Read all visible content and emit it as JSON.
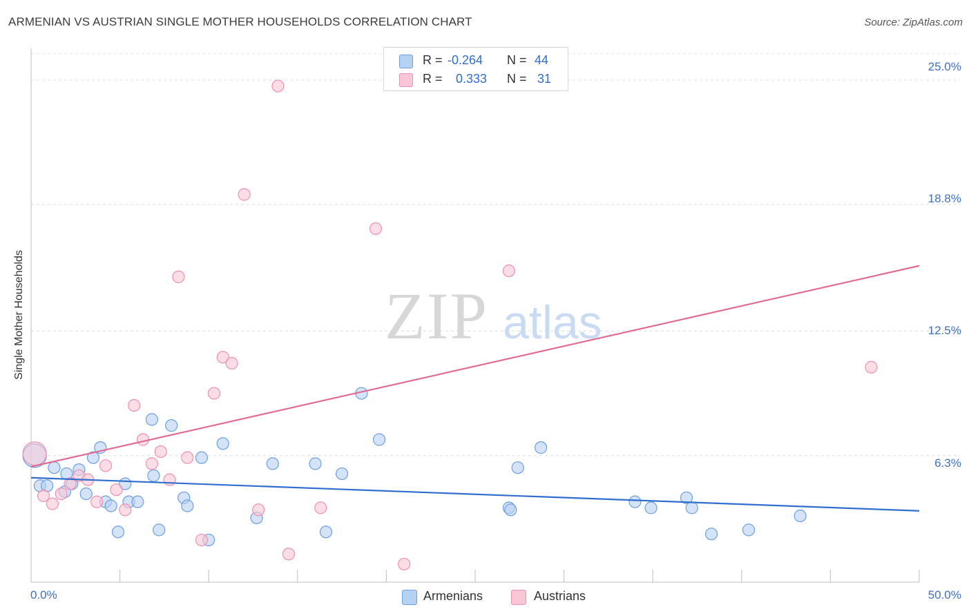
{
  "header": {
    "title": "ARMENIAN VS AUSTRIAN SINGLE MOTHER HOUSEHOLDS CORRELATION CHART",
    "source": "Source: ZipAtlas.com"
  },
  "watermark": {
    "zip": "ZIP",
    "atlas": "atlas"
  },
  "legend": {
    "rows": [
      {
        "r_label": "R =",
        "r_value": "-0.264",
        "n_label": "N =",
        "n_value": "44",
        "color": "#8fb8ec"
      },
      {
        "r_label": "R =",
        "r_value": "0.333",
        "n_label": "N =",
        "n_value": "31",
        "color": "#f4a6bf"
      }
    ]
  },
  "bottom_legend": [
    {
      "label": "Armenians",
      "color": "#8fb8ec"
    },
    {
      "label": "Austrians",
      "color": "#f4a6bf"
    }
  ],
  "chart_data": {
    "type": "scatter",
    "title": "ARMENIAN VS AUSTRIAN SINGLE MOTHER HOUSEHOLDS CORRELATION CHART",
    "xlabel": "",
    "ylabel": "Single Mother Households",
    "xlim": [
      0,
      50
    ],
    "ylim": [
      0,
      26.3
    ],
    "x_tick_labels": [
      "0.0%",
      "50.0%"
    ],
    "y_ticks": [
      6.3,
      12.5,
      18.8,
      25.0
    ],
    "y_tick_labels": [
      "6.3%",
      "12.5%",
      "18.8%",
      "25.0%"
    ],
    "grid": true,
    "series": [
      {
        "name": "Armenians",
        "color": "#6a9fe0",
        "fill": "#b7d1f3",
        "trend": {
          "x": [
            0,
            50
          ],
          "y": [
            5.2,
            3.55
          ],
          "color": "#2f6ecf"
        },
        "points": [
          [
            0.2,
            6.3
          ],
          [
            0.5,
            4.8
          ],
          [
            0.9,
            4.8
          ],
          [
            1.3,
            5.7
          ],
          [
            1.9,
            4.5
          ],
          [
            2.0,
            5.4
          ],
          [
            2.3,
            4.9
          ],
          [
            2.7,
            5.6
          ],
          [
            3.1,
            4.4
          ],
          [
            3.5,
            6.2
          ],
          [
            3.9,
            6.7
          ],
          [
            4.2,
            4.0
          ],
          [
            4.5,
            3.8
          ],
          [
            4.9,
            2.5
          ],
          [
            5.3,
            4.9
          ],
          [
            5.5,
            4.0
          ],
          [
            6.0,
            4.0
          ],
          [
            6.8,
            8.1
          ],
          [
            6.9,
            5.3
          ],
          [
            7.2,
            2.6
          ],
          [
            7.9,
            7.8
          ],
          [
            8.6,
            4.2
          ],
          [
            8.8,
            3.8
          ],
          [
            9.6,
            6.2
          ],
          [
            10.0,
            2.1
          ],
          [
            10.8,
            6.9
          ],
          [
            12.7,
            3.2
          ],
          [
            13.6,
            5.9
          ],
          [
            16.0,
            5.9
          ],
          [
            16.6,
            2.5
          ],
          [
            17.5,
            5.4
          ],
          [
            18.6,
            9.4
          ],
          [
            19.6,
            7.1
          ],
          [
            26.9,
            3.7
          ],
          [
            27.0,
            3.6
          ],
          [
            27.4,
            5.7
          ],
          [
            28.7,
            6.7
          ],
          [
            34.0,
            4.0
          ],
          [
            34.9,
            3.7
          ],
          [
            36.9,
            4.2
          ],
          [
            37.2,
            3.7
          ],
          [
            38.3,
            2.4
          ],
          [
            40.4,
            2.6
          ],
          [
            43.3,
            3.3
          ]
        ]
      },
      {
        "name": "Austrians",
        "color": "#ef8fb0",
        "fill": "#f9c6d6",
        "trend": {
          "x": [
            0,
            50
          ],
          "y": [
            5.75,
            15.75
          ],
          "color": "#e06b96"
        },
        "points": [
          [
            0.2,
            6.4
          ],
          [
            0.7,
            4.3
          ],
          [
            1.2,
            3.9
          ],
          [
            1.7,
            4.4
          ],
          [
            2.2,
            4.9
          ],
          [
            2.7,
            5.3
          ],
          [
            3.2,
            5.1
          ],
          [
            3.7,
            4.0
          ],
          [
            4.2,
            5.8
          ],
          [
            4.8,
            4.6
          ],
          [
            5.3,
            3.6
          ],
          [
            5.8,
            8.8
          ],
          [
            6.3,
            7.1
          ],
          [
            6.8,
            5.9
          ],
          [
            7.3,
            6.5
          ],
          [
            7.8,
            5.1
          ],
          [
            8.3,
            15.2
          ],
          [
            8.8,
            6.2
          ],
          [
            9.6,
            2.1
          ],
          [
            10.3,
            9.4
          ],
          [
            10.8,
            11.2
          ],
          [
            11.3,
            10.9
          ],
          [
            12.0,
            19.3
          ],
          [
            12.8,
            3.6
          ],
          [
            13.9,
            24.7
          ],
          [
            14.5,
            1.4
          ],
          [
            16.3,
            3.7
          ],
          [
            19.4,
            17.6
          ],
          [
            21.0,
            0.9
          ],
          [
            26.9,
            15.5
          ],
          [
            47.3,
            10.7
          ]
        ]
      }
    ]
  }
}
